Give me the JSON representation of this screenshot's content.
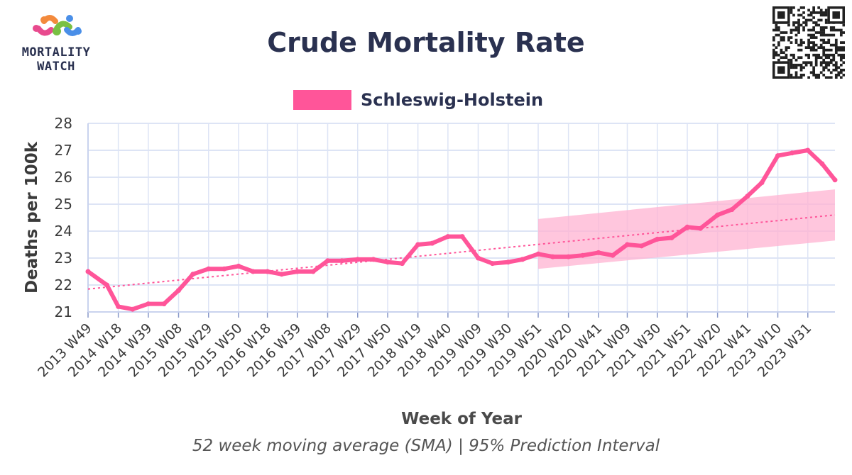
{
  "logo": {
    "text_line1": "MORTALITY",
    "text_line2": "WATCH"
  },
  "colors": {
    "series": "#ff5599",
    "band": "#ffb3d1",
    "trend": "#ff5599",
    "grid": "#dde4f5",
    "axis": "#c9d3ee"
  },
  "chart_data": {
    "type": "line",
    "title": "Crude Mortality Rate",
    "subtitle": "52 week moving average (SMA) | 95% Prediction Interval",
    "xlabel": "Week of Year",
    "ylabel": "Deaths per 100k",
    "ylim": [
      21,
      28
    ],
    "yticks": [
      21,
      22,
      23,
      24,
      25,
      26,
      27,
      28
    ],
    "grid": true,
    "legend_position": "top-center",
    "series": [
      {
        "name": "Schleswig-Holstein",
        "x": [
          "2013 W49",
          "2014 W10",
          "2014 W18",
          "2014 W28",
          "2014 W39",
          "2014 W50",
          "2015 W08",
          "2015 W18",
          "2015 W29",
          "2015 W40",
          "2015 W50",
          "2016 W08",
          "2016 W18",
          "2016 W28",
          "2016 W39",
          "2016 W50",
          "2017 W08",
          "2017 W18",
          "2017 W29",
          "2017 W40",
          "2017 W50",
          "2018 W08",
          "2018 W19",
          "2018 W29",
          "2018 W40",
          "2018 W50",
          "2019 W09",
          "2019 W19",
          "2019 W30",
          "2019 W40",
          "2019 W51",
          "2020 W09",
          "2020 W20",
          "2020 W30",
          "2020 W41",
          "2020 W51",
          "2021 W09",
          "2021 W19",
          "2021 W30",
          "2021 W40",
          "2021 W51",
          "2022 W08",
          "2022 W20",
          "2022 W30",
          "2022 W41",
          "2022 W51",
          "2023 W10",
          "2023 W20",
          "2023 W31",
          "2023 W41",
          "2023 W50"
        ],
        "values": [
          22.5,
          22.0,
          21.2,
          21.1,
          21.3,
          21.3,
          21.8,
          22.4,
          22.6,
          22.6,
          22.7,
          22.5,
          22.5,
          22.4,
          22.5,
          22.5,
          22.9,
          22.9,
          22.95,
          22.95,
          22.85,
          22.8,
          23.5,
          23.55,
          23.8,
          23.8,
          23.0,
          22.8,
          22.85,
          22.95,
          23.15,
          23.05,
          23.05,
          23.1,
          23.2,
          23.1,
          23.5,
          23.45,
          23.7,
          23.75,
          24.15,
          24.1,
          24.6,
          24.8,
          25.3,
          25.8,
          26.8,
          26.9,
          27.0,
          26.5,
          25.9
        ]
      }
    ],
    "trend_line": {
      "x": [
        "2013 W49",
        "2023 W50"
      ],
      "y": [
        21.85,
        24.6
      ]
    },
    "prediction_interval": {
      "x": [
        "2019 W51",
        "2023 W50"
      ],
      "lower": [
        22.6,
        23.65
      ],
      "upper": [
        24.45,
        25.55
      ]
    },
    "xtick_labels": [
      "2013 W49",
      "2014 W18",
      "2014 W39",
      "2015 W08",
      "2015 W29",
      "2015 W50",
      "2016 W18",
      "2016 W39",
      "2017 W08",
      "2017 W29",
      "2017 W50",
      "2018 W19",
      "2018 W40",
      "2019 W09",
      "2019 W30",
      "2019 W51",
      "2020 W20",
      "2020 W41",
      "2021 W09",
      "2021 W30",
      "2021 W51",
      "2022 W20",
      "2022 W41",
      "2023 W10",
      "2023 W31"
    ]
  }
}
